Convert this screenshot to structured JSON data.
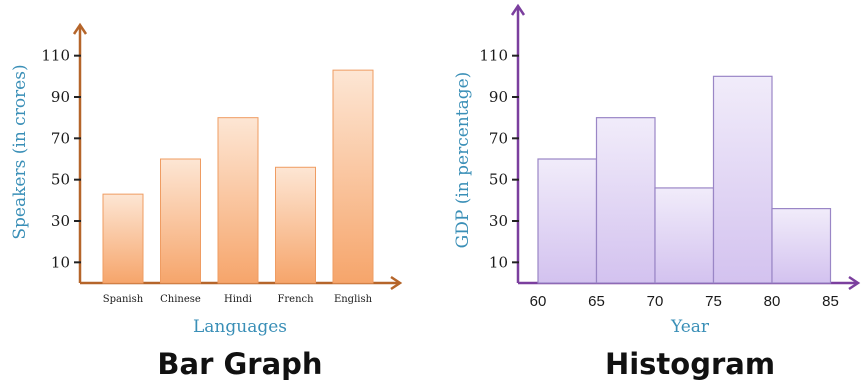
{
  "chart_data": [
    {
      "type": "bar",
      "title": "Bar Graph",
      "xlabel": "Languages",
      "ylabel": "Speakers (in crores)",
      "categories": [
        "Spanish",
        "Chinese",
        "Hindi",
        "French",
        "English"
      ],
      "values": [
        43,
        60,
        80,
        56,
        103
      ],
      "yticks": [
        10,
        30,
        50,
        70,
        90,
        110
      ],
      "ylim": [
        0,
        120
      ],
      "grid": false,
      "colors": {
        "axis": "#b5652a",
        "bar_top": "#fde6d4",
        "bar_bottom": "#f6a56b",
        "bar_stroke": "#ef9c62"
      }
    },
    {
      "type": "histogram",
      "title": "Histogram",
      "xlabel": "Year",
      "ylabel": "GDP (in percentage)",
      "bins": [
        60,
        65,
        70,
        75,
        80,
        85
      ],
      "values": [
        60,
        80,
        46,
        100,
        36
      ],
      "yticks": [
        10,
        30,
        50,
        70,
        90,
        110
      ],
      "ylim": [
        0,
        120
      ],
      "grid": false,
      "colors": {
        "axis": "#7b3f9e",
        "bar_top": "#f1ecfa",
        "bar_bottom": "#d3c2ef",
        "bar_stroke": "#9a86c6"
      }
    }
  ]
}
